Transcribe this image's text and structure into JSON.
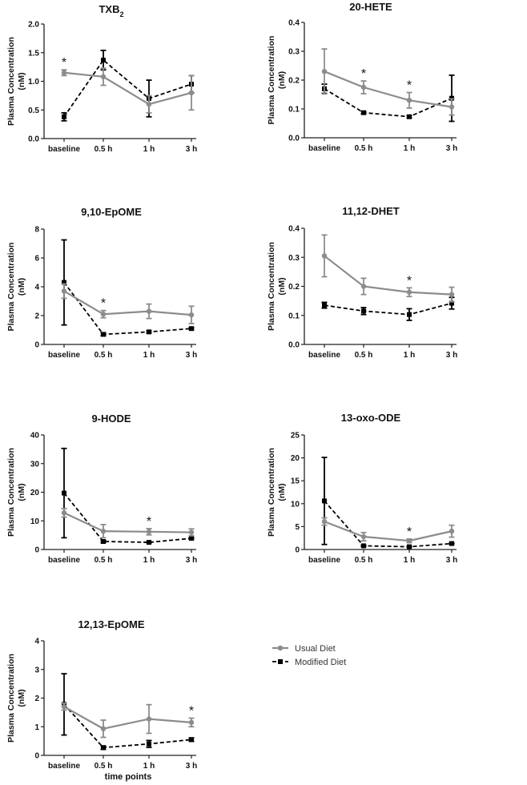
{
  "legend": {
    "usual": "Usual Diet",
    "modified": "Modified Diet"
  },
  "colors": {
    "usual": "#8c8c8c",
    "modified": "#000000"
  },
  "chart_data": [
    {
      "type": "line",
      "title": "TXB",
      "title_sub": "2",
      "ylabel_line1": "Plasma Concentration",
      "ylabel_line2": "(nM)",
      "categories": [
        "baseline",
        "0.5 h",
        "1 h",
        "3 h"
      ],
      "ylim": [
        0,
        2.0
      ],
      "yticks": [
        "0.0",
        "0.5",
        "1.0",
        "1.5",
        "2.0"
      ],
      "series": [
        {
          "name": "Usual Diet",
          "values": [
            1.15,
            1.08,
            0.6,
            0.8
          ],
          "err": [
            0.05,
            0.15,
            0.15,
            0.3
          ]
        },
        {
          "name": "Modified Diet",
          "values": [
            0.38,
            1.37,
            0.7,
            0.95
          ],
          "err": [
            0.07,
            0.17,
            0.32,
            0.15
          ]
        }
      ],
      "significant": [
        "*",
        "",
        "",
        ""
      ]
    },
    {
      "type": "line",
      "title": "20-HETE",
      "ylabel_line1": "Plasma Concentration",
      "ylabel_line2": "(nM)",
      "categories": [
        "baseline",
        "0.5 h",
        "1 h",
        "3 h"
      ],
      "ylim": [
        0,
        0.4
      ],
      "yticks": [
        "0.0",
        "0.1",
        "0.2",
        "0.3",
        "0.4"
      ],
      "series": [
        {
          "name": "Usual Diet",
          "values": [
            0.23,
            0.175,
            0.13,
            0.107
          ],
          "err": [
            0.078,
            0.022,
            0.027,
            0.028
          ]
        },
        {
          "name": "Modified Diet",
          "values": [
            0.17,
            0.087,
            0.073,
            0.137
          ],
          "err": [
            0.016,
            0.004,
            0.004,
            0.08
          ]
        }
      ],
      "significant": [
        "",
        "*",
        "*",
        ""
      ]
    },
    {
      "type": "line",
      "title": "9,10-EpOME",
      "ylabel_line1": "Plasma Concentration",
      "ylabel_line2": "(nM)",
      "categories": [
        "baseline",
        "0.5 h",
        "1 h",
        "3 h"
      ],
      "ylim": [
        0,
        8
      ],
      "yticks": [
        "0",
        "2",
        "4",
        "6",
        "8"
      ],
      "series": [
        {
          "name": "Usual Diet",
          "values": [
            3.7,
            2.1,
            2.3,
            2.05
          ],
          "err": [
            0.5,
            0.25,
            0.5,
            0.6
          ]
        },
        {
          "name": "Modified Diet",
          "values": [
            4.3,
            0.7,
            0.87,
            1.1
          ],
          "err": [
            2.95,
            0.1,
            0.07,
            0.07
          ]
        }
      ],
      "significant": [
        "",
        "*",
        "",
        ""
      ]
    },
    {
      "type": "line",
      "title": "11,12-DHET",
      "ylabel_line1": "Plasma Concentration",
      "ylabel_line2": "(nM)",
      "categories": [
        "baseline",
        "0.5 h",
        "1 h",
        "3 h"
      ],
      "ylim": [
        0,
        0.4
      ],
      "yticks": [
        "0.0",
        "0.1",
        "0.2",
        "0.3",
        "0.4"
      ],
      "series": [
        {
          "name": "Usual Diet",
          "values": [
            0.305,
            0.2,
            0.18,
            0.172
          ],
          "err": [
            0.072,
            0.028,
            0.015,
            0.025
          ]
        },
        {
          "name": "Modified Diet",
          "values": [
            0.135,
            0.115,
            0.103,
            0.142
          ],
          "err": [
            0.01,
            0.012,
            0.02,
            0.02
          ]
        }
      ],
      "significant": [
        "",
        "",
        "*",
        ""
      ]
    },
    {
      "type": "line",
      "title": "9-HODE",
      "ylabel_line1": "Plasma Concentration",
      "ylabel_line2": "(nM)",
      "categories": [
        "baseline",
        "0.5 h",
        "1 h",
        "3 h"
      ],
      "ylim": [
        0,
        40
      ],
      "yticks": [
        "0",
        "10",
        "20",
        "30",
        "40"
      ],
      "series": [
        {
          "name": "Usual Diet",
          "values": [
            12.8,
            6.4,
            6.2,
            6.0
          ],
          "err": [
            1.5,
            2.3,
            1.1,
            1.2
          ]
        },
        {
          "name": "Modified Diet",
          "values": [
            19.7,
            2.8,
            2.5,
            3.9
          ],
          "err": [
            15.6,
            0.4,
            0.2,
            0.3
          ]
        }
      ],
      "significant": [
        "",
        "",
        "*",
        ""
      ]
    },
    {
      "type": "line",
      "title": "13-oxo-ODE",
      "ylabel_line1": "Plasma Concentration",
      "ylabel_line2": "(nM)",
      "categories": [
        "baseline",
        "0.5 h",
        "1 h",
        "3 h"
      ],
      "ylim": [
        0,
        25
      ],
      "yticks": [
        "0",
        "5",
        "10",
        "15",
        "20",
        "25"
      ],
      "series": [
        {
          "name": "Usual Diet",
          "values": [
            6.1,
            2.8,
            1.9,
            4.0
          ],
          "err": [
            0.8,
            0.9,
            0.4,
            1.3
          ]
        },
        {
          "name": "Modified Diet",
          "values": [
            10.6,
            0.8,
            0.6,
            1.3
          ],
          "err": [
            9.5,
            0.15,
            0.1,
            0.15
          ]
        }
      ],
      "significant": [
        "",
        "",
        "*",
        ""
      ]
    },
    {
      "type": "line",
      "title": "12,13-EpOME",
      "ylabel_line1": "Plasma Concentration",
      "ylabel_line2": "(nM)",
      "xlabel": "time points",
      "categories": [
        "baseline",
        "0.5 h",
        "1 h",
        "3 h"
      ],
      "ylim": [
        0,
        4
      ],
      "yticks": [
        "0",
        "1",
        "2",
        "3",
        "4"
      ],
      "series": [
        {
          "name": "Usual Diet",
          "values": [
            1.7,
            0.93,
            1.27,
            1.15
          ],
          "err": [
            0.12,
            0.3,
            0.5,
            0.15
          ]
        },
        {
          "name": "Modified Diet",
          "values": [
            1.78,
            0.27,
            0.4,
            0.55
          ],
          "err": [
            1.07,
            0.06,
            0.12,
            0.06
          ]
        }
      ],
      "significant": [
        "",
        "",
        "",
        "*"
      ]
    }
  ]
}
